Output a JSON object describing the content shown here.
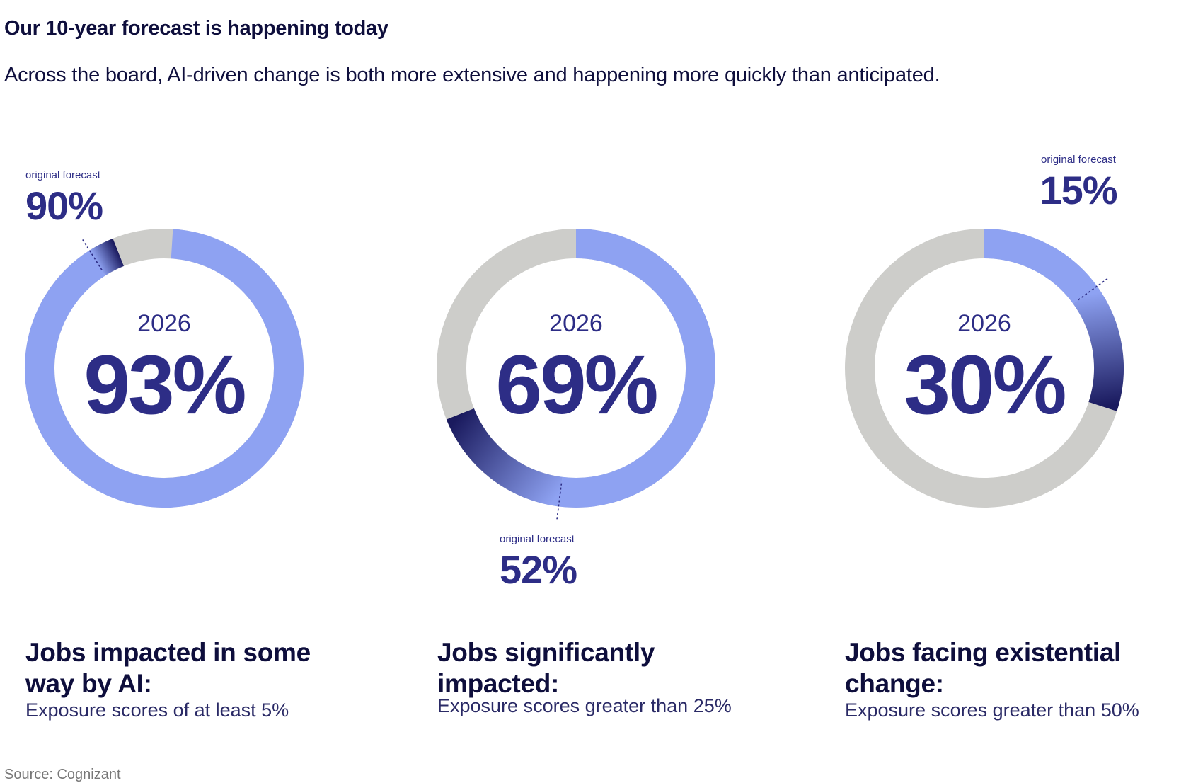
{
  "header": {
    "title": "Our 10-year forecast is happening today",
    "subtitle": "Across the board, AI-driven change is both more extensive and happening more quickly than anticipated."
  },
  "colors": {
    "ring_fill": "#8ea2f2",
    "ring_track": "#cdcdca",
    "gradient_dark": "#1a1a5e",
    "text_dark": "#2d2d86"
  },
  "chart_data": [
    {
      "type": "donut",
      "year_label": "2026",
      "value": 93,
      "value_label": "93%",
      "original_forecast": 90,
      "original_forecast_value_label": "90%",
      "forecast_label": "original forecast",
      "caption_title": "Jobs impacted in some way by AI:",
      "caption_desc": "Exposure scores of at least 5%"
    },
    {
      "type": "donut",
      "year_label": "2026",
      "value": 69,
      "value_label": "69%",
      "original_forecast": 52,
      "original_forecast_value_label": "52%",
      "forecast_label": "original forecast",
      "caption_title": "Jobs significantly impacted:",
      "caption_desc": "Exposure scores greater than 25%"
    },
    {
      "type": "donut",
      "year_label": "2026",
      "value": 30,
      "value_label": "30%",
      "original_forecast": 15,
      "original_forecast_value_label": "15%",
      "forecast_label": "original forecast",
      "caption_title": "Jobs facing existential change:",
      "caption_desc": "Exposure scores greater than 50%"
    }
  ],
  "footer": {
    "source": "Source: Cognizant"
  }
}
